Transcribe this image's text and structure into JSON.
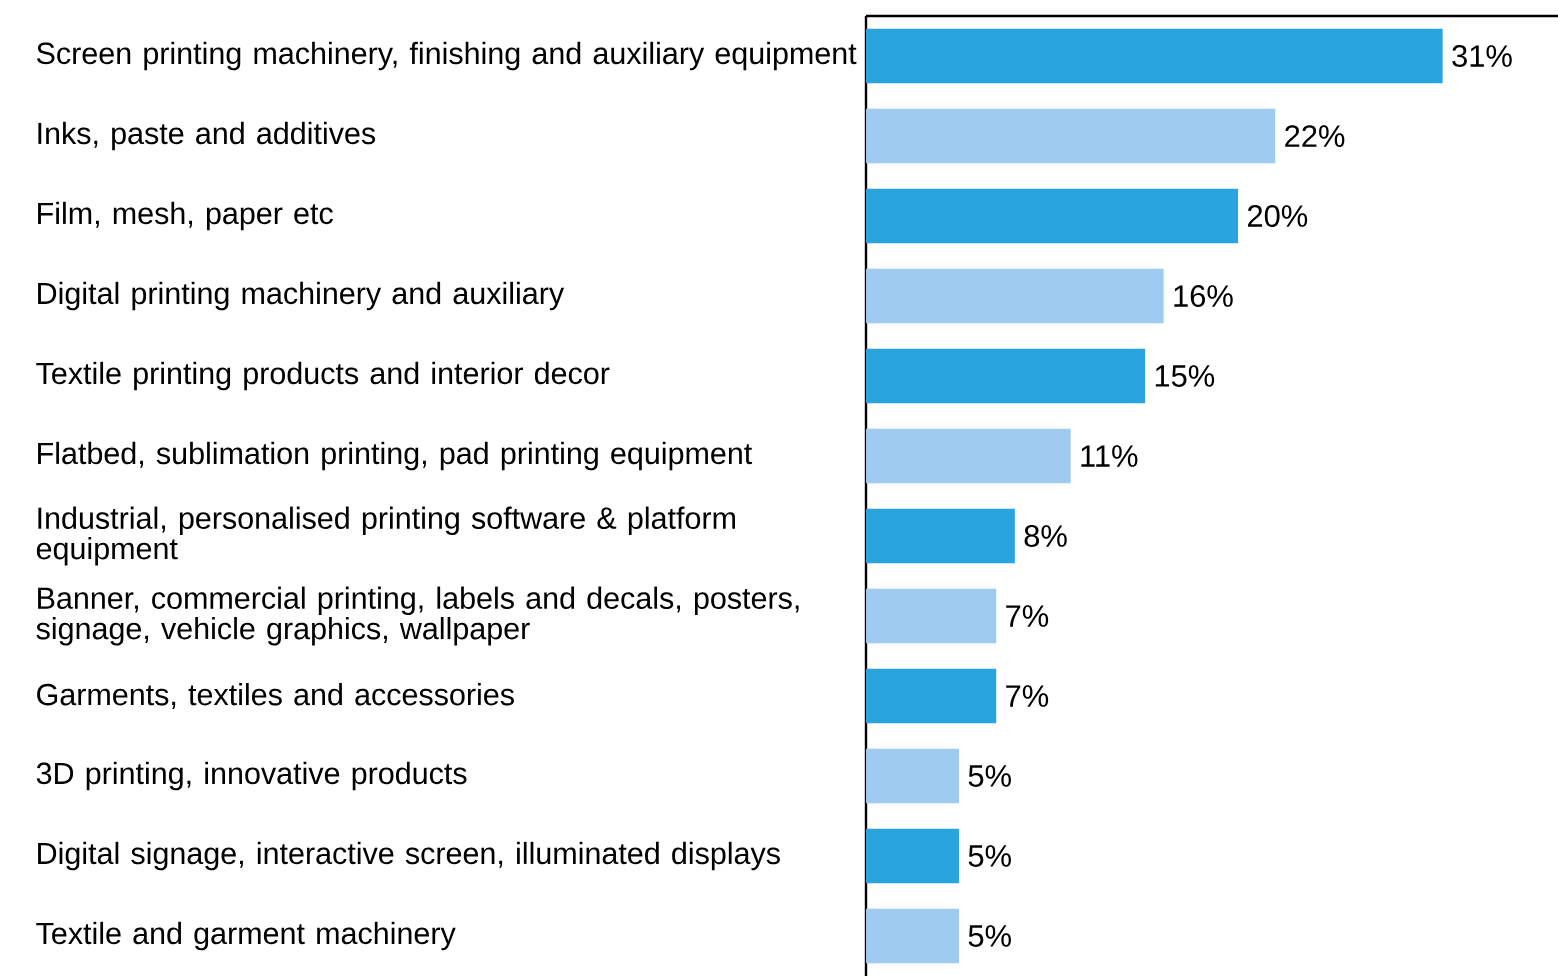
{
  "chart_data": {
    "type": "bar",
    "orientation": "horizontal",
    "categories": [
      "Screen printing machinery, finishing and auxiliary equipment",
      "Inks, paste and additives",
      "Film, mesh, paper etc",
      "Digital printing machinery and auxiliary",
      "Textile printing products and interior decor",
      "Flatbed, sublimation printing, pad printing equipment",
      "Industrial, personalised printing software & platform equipment",
      "Banner, commercial printing, labels and decals, posters, signage, vehicle graphics, wallpaper",
      "Garments, textiles and accessories",
      "3D printing, innovative products",
      "Digital signage, interactive screen, illuminated displays",
      "Textile and garment machinery"
    ],
    "values": [
      31,
      22,
      20,
      16,
      15,
      11,
      8,
      7,
      7,
      5,
      5,
      5
    ],
    "value_labels": [
      "31%",
      "22%",
      "20%",
      "16%",
      "15%",
      "11%",
      "8%",
      "7%",
      "7%",
      "5%",
      "5%",
      "5%"
    ],
    "colors": [
      "#29a4de",
      "#9ecbef",
      "#29a4de",
      "#9ecbef",
      "#29a4de",
      "#9ecbef",
      "#29a4de",
      "#9ecbef",
      "#29a4de",
      "#9ecbef",
      "#29a4de",
      "#9ecbef"
    ]
  }
}
